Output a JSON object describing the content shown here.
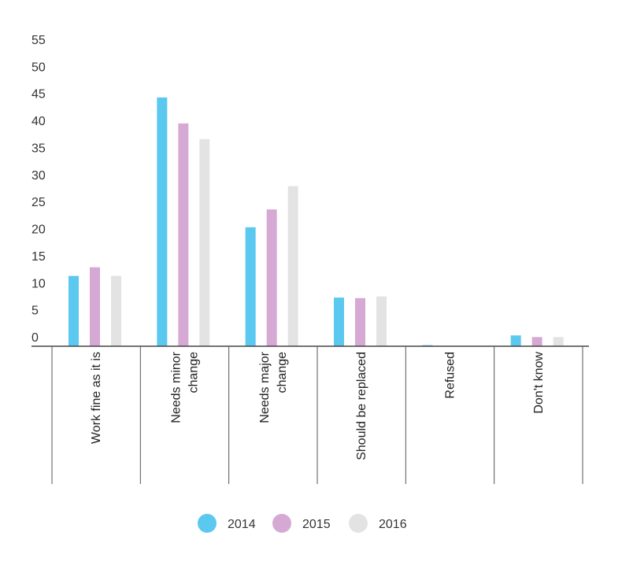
{
  "chart_data": {
    "type": "bar",
    "categories": [
      [
        "Work fine as it is"
      ],
      [
        "Needs minor",
        "change"
      ],
      [
        "Needs major",
        "change"
      ],
      [
        "Should be replaced"
      ],
      [
        "Refused"
      ],
      [
        "Don't know"
      ]
    ],
    "series": [
      {
        "name": "2014",
        "color": "#5bc8ef",
        "values": [
          13,
          46,
          22,
          9,
          0.2,
          2
        ]
      },
      {
        "name": "2015",
        "color": "#d5a9d3",
        "values": [
          14.6,
          41.2,
          25.3,
          8.9,
          0.05,
          1.7
        ]
      },
      {
        "name": "2016",
        "color": "#e3e3e3",
        "values": [
          13,
          38.3,
          29.6,
          9.2,
          0.05,
          1.7
        ]
      }
    ],
    "yticks": [
      "0",
      "5",
      "10",
      "15",
      "20",
      "25",
      "30",
      "35",
      "40",
      "45",
      "50",
      "55"
    ],
    "ylim": [
      0,
      55
    ],
    "grid": false,
    "legend_position": "bottom-center"
  }
}
